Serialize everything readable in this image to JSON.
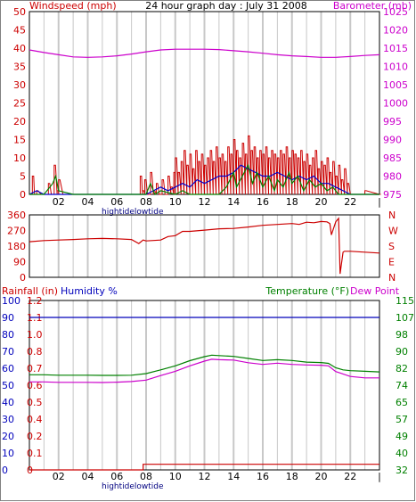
{
  "title": "24 hour graph day : July 31 2008",
  "colors": {
    "wind": "#cc0000",
    "wind_avg": "#0000cc",
    "wind_green": "#008000",
    "barometer": "#cc00cc",
    "direction": "#cc0000",
    "humidity": "#0000bb",
    "temperature": "#008000",
    "dewpoint": "#cc00cc",
    "rainfall": "#cc0000",
    "grid": "#c8c8c8",
    "frame": "#000000"
  },
  "time_ticks": [
    "02",
    "04",
    "06",
    "08",
    "10",
    "12",
    "14",
    "16",
    "18",
    "20",
    "22",
    "|"
  ],
  "tide_label": "hightidelowtide",
  "chart_data": [
    {
      "type": "line",
      "name": "wind-barometer",
      "left_label": "Windspeed (mph)",
      "right_label": "Barometer (mb)",
      "x_range": [
        0,
        24
      ],
      "ylim_left": [
        0,
        50
      ],
      "ylim_right": [
        975,
        1025
      ],
      "left_ticks": [
        "0",
        "5",
        "10",
        "15",
        "20",
        "25",
        "30",
        "35",
        "40",
        "45",
        "50"
      ],
      "right_ticks": [
        "975",
        "980",
        "985",
        "990",
        "995",
        "1000",
        "1005",
        "1010",
        "1015",
        "1020",
        "1025"
      ],
      "series": [
        {
          "key": "barometer",
          "axis": "right",
          "x": [
            0,
            1,
            2,
            3,
            4,
            5,
            6,
            7,
            8,
            9,
            10,
            11,
            12,
            13,
            14,
            15,
            16,
            17,
            18,
            19,
            20,
            21,
            22,
            23,
            24
          ],
          "values": [
            1014.5,
            1013.8,
            1013.2,
            1012.6,
            1012.5,
            1012.6,
            1012.9,
            1013.4,
            1014.0,
            1014.5,
            1014.7,
            1014.7,
            1014.7,
            1014.6,
            1014.3,
            1014.0,
            1013.6,
            1013.2,
            1012.9,
            1012.7,
            1012.5,
            1012.5,
            1012.7,
            1013.0,
            1013.2
          ]
        },
        {
          "key": "wind_gust",
          "axis": "left",
          "x": [
            0.0,
            0.2,
            0.35,
            0.5,
            0.8,
            1.0,
            1.3,
            1.5,
            1.7,
            1.9,
            2.0,
            2.3,
            2.7,
            3.2,
            4.0,
            5.0,
            6.0,
            7.0,
            7.6,
            7.75,
            7.9,
            8.1,
            8.3,
            8.5,
            8.7,
            8.9,
            9.1,
            9.3,
            9.5,
            9.7,
            9.9,
            10.0,
            10.2,
            10.4,
            10.6,
            10.8,
            11.0,
            11.2,
            11.4,
            11.6,
            11.8,
            12.0,
            12.2,
            12.4,
            12.6,
            12.8,
            13.0,
            13.2,
            13.4,
            13.6,
            13.8,
            14.0,
            14.2,
            14.4,
            14.6,
            14.8,
            15.0,
            15.2,
            15.4,
            15.6,
            15.8,
            16.0,
            16.2,
            16.4,
            16.6,
            16.8,
            17.0,
            17.2,
            17.4,
            17.6,
            17.8,
            18.0,
            18.2,
            18.4,
            18.6,
            18.8,
            19.0,
            19.2,
            19.4,
            19.6,
            19.8,
            20.0,
            20.2,
            20.4,
            20.6,
            20.8,
            21.0,
            21.2,
            21.4,
            21.6,
            21.8,
            22.0,
            22.5,
            23.0,
            24.0
          ],
          "values": [
            0,
            5,
            0,
            1,
            0,
            0,
            3,
            0,
            8,
            1,
            4,
            0,
            0,
            0,
            0,
            0,
            0,
            0,
            5,
            1,
            4,
            0,
            6,
            1,
            3,
            0,
            4,
            0,
            5,
            2,
            6,
            10,
            6,
            9,
            12,
            8,
            11,
            7,
            12,
            9,
            11,
            8,
            10,
            12,
            9,
            13,
            10,
            11,
            9,
            13,
            11,
            15,
            12,
            10,
            14,
            11,
            16,
            12,
            13,
            10,
            12,
            11,
            13,
            10,
            12,
            11,
            10,
            12,
            11,
            13,
            10,
            12,
            11,
            10,
            12,
            9,
            11,
            8,
            10,
            12,
            7,
            9,
            8,
            10,
            6,
            9,
            5,
            8,
            4,
            7,
            3,
            0,
            0,
            1,
            0
          ]
        },
        {
          "key": "wind_avg",
          "axis": "left",
          "x": [
            0,
            0.5,
            1,
            2,
            3,
            8,
            8.5,
            9,
            9.5,
            10,
            10.5,
            11,
            11.5,
            12,
            12.5,
            13,
            13.5,
            14,
            14.5,
            15,
            15.5,
            16,
            16.5,
            17,
            17.5,
            18,
            18.5,
            19,
            19.5,
            20,
            20.5,
            21,
            21.5,
            22,
            24
          ],
          "values": [
            0,
            1,
            0,
            0,
            0,
            0,
            1,
            2,
            1,
            2,
            3,
            2,
            4,
            3,
            4,
            5,
            5,
            6,
            8,
            7,
            6,
            5,
            5,
            6,
            5,
            4,
            5,
            4,
            5,
            3,
            3,
            2,
            1,
            0,
            0
          ]
        },
        {
          "key": "wind_green",
          "axis": "left",
          "x": [
            0,
            0.5,
            1,
            1.6,
            1.8,
            2.0,
            3,
            8,
            8.3,
            8.6,
            9,
            10,
            10.5,
            11,
            12,
            13,
            13.5,
            14,
            14.2,
            14.6,
            15,
            15.3,
            15.6,
            16,
            16.4,
            16.8,
            17,
            17.4,
            17.8,
            18,
            18.4,
            18.8,
            19.2,
            19.6,
            20,
            20.4,
            20.8,
            21.2,
            22,
            24
          ],
          "values": [
            0,
            0,
            0,
            3,
            5,
            1,
            0,
            0,
            3,
            0,
            1,
            0,
            1,
            0,
            0,
            0,
            2,
            6,
            2,
            5,
            8,
            3,
            6,
            2,
            5,
            1,
            4,
            2,
            6,
            3,
            5,
            1,
            4,
            2,
            3,
            1,
            2,
            0,
            0,
            0
          ]
        }
      ]
    },
    {
      "type": "line",
      "name": "wind-direction",
      "ylim": [
        0,
        360
      ],
      "left_ticks": [
        "0",
        "90",
        "180",
        "270",
        "360"
      ],
      "right_ticks": [
        "N",
        "E",
        "S",
        "W",
        "N"
      ],
      "x": [
        0,
        1,
        2,
        3,
        4,
        5,
        6,
        7,
        7.5,
        7.8,
        8,
        9,
        9.5,
        10,
        10.5,
        11,
        12,
        13,
        14,
        15,
        16,
        17,
        18,
        18.5,
        19,
        19.5,
        20,
        20.4,
        20.6,
        20.7,
        21,
        21.2,
        21.3,
        21.5,
        21.6,
        22,
        23,
        24
      ],
      "values": [
        205,
        212,
        215,
        218,
        222,
        224,
        222,
        218,
        195,
        215,
        210,
        215,
        235,
        240,
        265,
        265,
        272,
        280,
        282,
        290,
        300,
        305,
        310,
        305,
        318,
        315,
        322,
        320,
        310,
        245,
        320,
        340,
        20,
        145,
        150,
        150,
        145,
        140
      ]
    },
    {
      "type": "line",
      "name": "rain-humidity-temperature",
      "left_labels": [
        "Rainfall (in)",
        "Humidity %"
      ],
      "right_labels": [
        "Temperature (°F)",
        "Dew Point"
      ],
      "ylim_humidity": [
        0,
        100
      ],
      "ylim_temperature": [
        32,
        115
      ],
      "ylim_rain": [
        0,
        1.2
      ],
      "humidity_ticks": [
        "0",
        "10",
        "20",
        "30",
        "40",
        "50",
        "60",
        "70",
        "80",
        "90",
        "100"
      ],
      "rain_ticks": [
        "0",
        "0.1",
        "0.2",
        "0.4",
        "0.5",
        "0.6",
        "0.7",
        "0.8",
        "1.0",
        "1.1",
        "1.2"
      ],
      "temperature_ticks": [
        "32",
        "40",
        "49",
        "57",
        "65",
        "74",
        "82",
        "90",
        "98",
        "107",
        "115"
      ],
      "series": [
        {
          "key": "humidity",
          "x": [
            0,
            24
          ],
          "values": [
            90,
            90
          ]
        },
        {
          "key": "temperature",
          "x": [
            0,
            1,
            2,
            3,
            4,
            5,
            6,
            7,
            8,
            9,
            10,
            11,
            12,
            12.5,
            13,
            14,
            15,
            16,
            17,
            18,
            19,
            20,
            20.5,
            21,
            21.5,
            22,
            23,
            24
          ],
          "values": [
            78.6,
            78.6,
            78.4,
            78.4,
            78.4,
            78.3,
            78.3,
            78.4,
            79.2,
            81.0,
            83.0,
            85.5,
            87.5,
            88.2,
            88.0,
            87.6,
            86.6,
            85.6,
            86.0,
            85.6,
            84.8,
            84.6,
            84.2,
            82.0,
            81.0,
            80.6,
            80.3,
            80.0
          ]
        },
        {
          "key": "dewpoint",
          "x": [
            0,
            1,
            2,
            3,
            4,
            5,
            6,
            7,
            8,
            9,
            10,
            11,
            12,
            12.5,
            13,
            14,
            15,
            16,
            17,
            18,
            19,
            20,
            20.5,
            21,
            21.5,
            22,
            23,
            24
          ],
          "values": [
            75.1,
            75.1,
            74.9,
            74.9,
            74.9,
            74.8,
            75.0,
            75.3,
            76.0,
            78.2,
            80.3,
            83.0,
            85.3,
            86.2,
            86.0,
            85.8,
            84.5,
            83.7,
            84.3,
            83.7,
            83.4,
            83.3,
            83.0,
            80.2,
            79.0,
            77.8,
            77.1,
            77.1
          ]
        },
        {
          "key": "rainfall",
          "x": [
            0,
            7.8,
            7.8,
            24
          ],
          "values": [
            0,
            0,
            0.04,
            0.04
          ]
        }
      ]
    }
  ]
}
